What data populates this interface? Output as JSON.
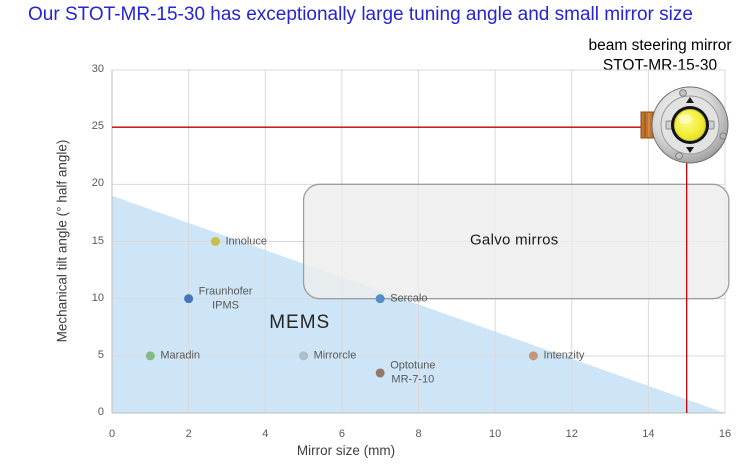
{
  "title": "Our STOT-MR-15-30 has exceptionally large tuning angle and small mirror size",
  "mirror_callout": {
    "line1": "beam steering mirror",
    "line2": "STOT-MR-15-30"
  },
  "colors": {
    "title": "#2424d6",
    "reference_line": "#c00000",
    "grid": "#d9d9d9",
    "axis": "#bfbfbf",
    "mems_fill": "#cde5f6",
    "galvo_fill": "#ededed",
    "label_text": "#595959"
  },
  "chart_data": {
    "type": "scatter",
    "title": "Our STOT-MR-15-30 has exceptionally large tuning angle and small mirror size",
    "xlabel": "Mirror size (mm)",
    "ylabel": "Mechanical tilt angle (° half angle)",
    "xlim": [
      0,
      16
    ],
    "ylim": [
      0,
      30
    ],
    "x_ticks": [
      0,
      2,
      4,
      6,
      8,
      10,
      12,
      14,
      16
    ],
    "y_ticks": [
      0,
      5,
      10,
      15,
      20,
      25,
      30
    ],
    "grid": true,
    "points": [
      {
        "name": "Innoluce",
        "x": 2.7,
        "y": 15,
        "color": "#c9bd4b",
        "label_lines": [
          "Innoluce"
        ]
      },
      {
        "name": "Fraunhofer IPMS",
        "x": 2,
        "y": 10,
        "color": "#4077b4",
        "label_lines": [
          "Fraunhofer",
          "IPMS"
        ]
      },
      {
        "name": "Sercalo",
        "x": 7,
        "y": 10,
        "color": "#538dc8",
        "label_lines": [
          "Sercalo"
        ]
      },
      {
        "name": "Maradin",
        "x": 1,
        "y": 5,
        "color": "#84bb84",
        "label_lines": [
          "Maradin"
        ]
      },
      {
        "name": "Mirrorcle",
        "x": 5,
        "y": 5,
        "color": "#a9bfcf",
        "label_lines": [
          "Mirrorcle"
        ]
      },
      {
        "name": "Optotune MR-7-10",
        "x": 7,
        "y": 3.5,
        "color": "#92786a",
        "label_lines": [
          "Optotune",
          "MR-7-10"
        ]
      },
      {
        "name": "Intenzity",
        "x": 11,
        "y": 5,
        "color": "#c39779",
        "label_lines": [
          "Intenzity"
        ]
      }
    ],
    "regions": [
      {
        "name": "MEMS",
        "shape": "triangle",
        "vertices": [
          [
            0,
            19
          ],
          [
            0,
            0
          ],
          [
            16,
            0
          ]
        ],
        "fill": "#cde5f6",
        "label": "MEMS",
        "label_pos": [
          4.9,
          7.9
        ]
      },
      {
        "name": "Galvo mirros",
        "shape": "rounded-rect",
        "x": [
          5,
          16.1
        ],
        "y": [
          10,
          20
        ],
        "fill": "#ededed",
        "stroke": "#9e9e9e",
        "label": "Galvo mirros",
        "label_pos": [
          10.5,
          15.1
        ]
      }
    ],
    "reference_lines": [
      {
        "orientation": "horizontal",
        "value": 25,
        "color": "#c00000"
      },
      {
        "orientation": "vertical",
        "value": 15,
        "color": "#c00000"
      }
    ]
  }
}
